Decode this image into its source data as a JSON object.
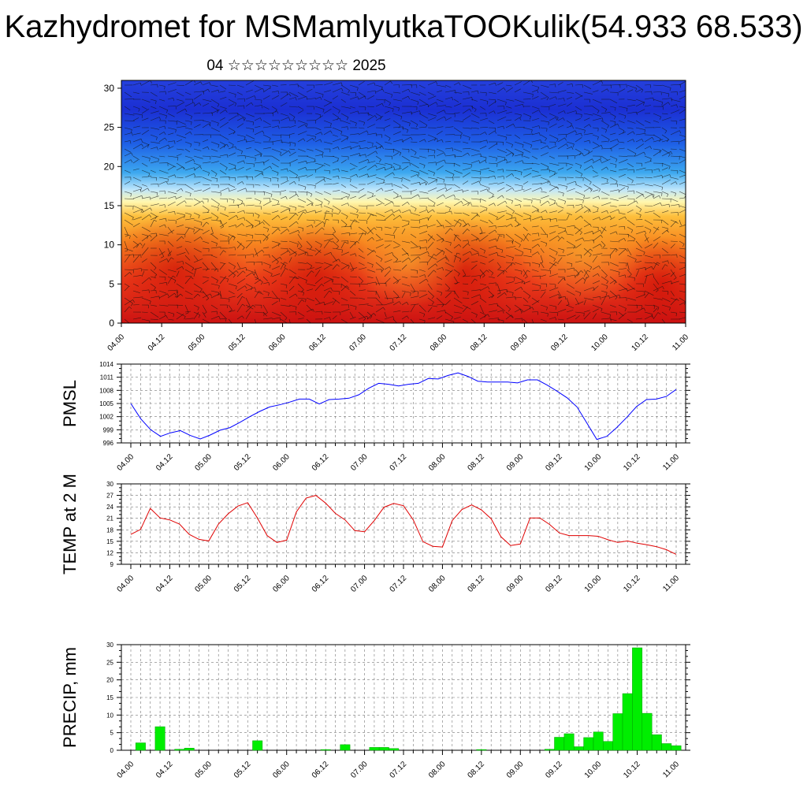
{
  "title": "Kazhydromet for MSMamlyutkaTOOKulik(54.933 68.533)",
  "subtitle": "04 ☆☆☆☆☆☆☆☆☆ 2025",
  "x_ticks": [
    "04.00",
    "04.12",
    "05.00",
    "05.12",
    "06.00",
    "06.12",
    "07.00",
    "07.12",
    "08.00",
    "08.12",
    "09.00",
    "09.12",
    "10.00",
    "10.12",
    "11.00"
  ],
  "chart_data": [
    {
      "type": "heatmap",
      "title": "",
      "xlabel": "",
      "ylabel": "",
      "categories": [
        "04.00",
        "04.12",
        "05.00",
        "05.12",
        "06.00",
        "06.12",
        "07.00",
        "07.12",
        "08.00",
        "08.12",
        "09.00",
        "09.12",
        "10.00",
        "10.12",
        "11.00"
      ],
      "ylim": [
        0,
        31
      ],
      "y_ticks": [
        "0",
        "5",
        "10",
        "15",
        "20",
        "25",
        "30"
      ],
      "colors": {
        "low_levels": "#d7191c",
        "mid_levels": "#fdae61",
        "transition": "#ffffbf",
        "upper_levels": "#2c7bb6",
        "top_levels": "#1a2fd0"
      },
      "overlay": "wind barbs",
      "grid": false
    },
    {
      "type": "line",
      "ylabel": "PMSL",
      "ylim": [
        996,
        1014
      ],
      "y_ticks": [
        "996",
        "999",
        "1002",
        "1005",
        "1008",
        "1011",
        "1014"
      ],
      "color": "#0000ff",
      "grid": true,
      "values": [
        1005,
        1001.5,
        999,
        997.5,
        998.3,
        998.8,
        997.7,
        996.9,
        997.8,
        998.9,
        999.5,
        1000.7,
        1002,
        1003.2,
        1004.2,
        1004.7,
        1005.3,
        1006,
        1006,
        1004.9,
        1005.9,
        1006,
        1006.2,
        1007,
        1008.5,
        1009.6,
        1009.4,
        1009,
        1009.4,
        1009.6,
        1010.7,
        1010.6,
        1011.4,
        1012,
        1011.2,
        1010.1,
        1009.9,
        1009.9,
        1009.9,
        1009.7,
        1010.4,
        1010.4,
        1009.2,
        1007.8,
        1006.3,
        1004.2,
        1000.5,
        996.8,
        997.5,
        999.5,
        1001.8,
        1004.3,
        1005.9,
        1006,
        1006.6,
        1008.2
      ]
    },
    {
      "type": "line",
      "ylabel": "TEMP at 2 M",
      "ylim": [
        9,
        30
      ],
      "y_ticks": [
        "9",
        "12",
        "15",
        "18",
        "21",
        "24",
        "27",
        "30"
      ],
      "color": "#e00000",
      "grid": true,
      "values": [
        16.8,
        18.1,
        23.6,
        21.1,
        20.6,
        19.5,
        16.8,
        15.5,
        15.1,
        19.5,
        22.2,
        24.2,
        25.1,
        21.1,
        16.5,
        14.7,
        15.3,
        22.7,
        26.3,
        27,
        25,
        22.3,
        20.6,
        17.8,
        17.5,
        20.4,
        23.9,
        24.9,
        24.3,
        20.6,
        14.9,
        13.7,
        13.5,
        20.4,
        23.3,
        24.5,
        23.2,
        20.9,
        16.2,
        13.9,
        14.3,
        21.1,
        21.1,
        19.4,
        17.2,
        16.5,
        16.5,
        16.5,
        16.3,
        15.4,
        14.7,
        15.1,
        14.5,
        14.1,
        13.6,
        12.8,
        11.6
      ]
    },
    {
      "type": "bar",
      "ylabel": "PRECIP, mm",
      "ylim": [
        0,
        30
      ],
      "y_ticks": [
        "0",
        "5",
        "10",
        "15",
        "20",
        "25",
        "30"
      ],
      "color": "#00ee00",
      "grid": true,
      "values": [
        0,
        2.1,
        0,
        6.7,
        0,
        0.3,
        0.6,
        0,
        0,
        0,
        0,
        0,
        0,
        2.7,
        0,
        0,
        0,
        0,
        0,
        0,
        0.2,
        0,
        1.6,
        0,
        0,
        0.8,
        0.8,
        0.5,
        0,
        0,
        0,
        0,
        0,
        0,
        0,
        0,
        0.2,
        0,
        0,
        0,
        0,
        0,
        0,
        0.3,
        3.7,
        4.7,
        1,
        3.6,
        5.2,
        2.5,
        10.4,
        16.1,
        29.1,
        10.5,
        4.4,
        1.9,
        1.3
      ]
    }
  ]
}
